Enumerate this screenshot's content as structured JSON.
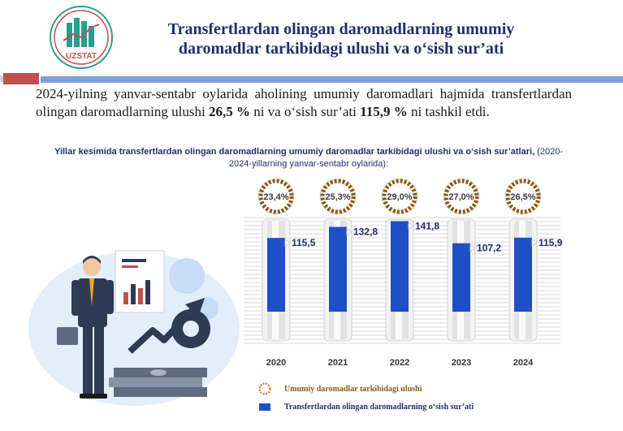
{
  "header": {
    "logo_text": "UZSTAT",
    "title_line1": "Transfertlardan olingan daromadlarning umumiy",
    "title_line2": "daromadlar tarkibidagi ulushi va o‘sish sur’ati"
  },
  "lead": {
    "part1": "2024-yilning yanvar-sentabr oylarida aholining umumiy daromadlari hajmida transfertlardan olingan daromadlarning ulushi ",
    "share": "26,5 %",
    "part2": " ni va o‘sish sur’ati ",
    "growth": "115,9 %",
    "part3": " ni tashkil etdi."
  },
  "subtitle": {
    "bold": "Yillar kesimida transfertlardan olingan daromadlarning umumiy daromadlar tarkibidagi ulushi va o‘sish sur’atlari,",
    "normal": " (2020-2024-yillarning yanvar-sentabr oylarida):"
  },
  "colors": {
    "navy": "#1f2f6e",
    "bar_blue": "#1e4fc7",
    "ring_brown": "#8b5a14",
    "ring_orange": "#e0892a",
    "red_bar": "#c0504d",
    "rule_blue": "#7fa0d6"
  },
  "chart_data": {
    "type": "bar",
    "categories": [
      "2020",
      "2021",
      "2022",
      "2023",
      "2024"
    ],
    "series": [
      {
        "name": "Transfertlardan olingan daromadlarning o‘sish sur’ati",
        "values": [
          115.5,
          132.8,
          141.8,
          107.2,
          115.9
        ],
        "labels": [
          "115,5",
          "132,8",
          "141,8",
          "107,2",
          "115,9"
        ]
      },
      {
        "name": "Umumiy daromadlar tarkibidagi ulushi",
        "values": [
          23.4,
          25.3,
          29.0,
          27.0,
          26.5
        ],
        "labels": [
          "23,4%",
          "25,3%",
          "29,0%",
          "27,0%",
          "26,5%"
        ]
      }
    ],
    "grid": true
  },
  "legend": {
    "share_label": "Umumiy daromadlar tarkibidagi ulushi",
    "growth_label": "Transfertlardan olingan daromadlarning o‘sish sur’ati"
  }
}
